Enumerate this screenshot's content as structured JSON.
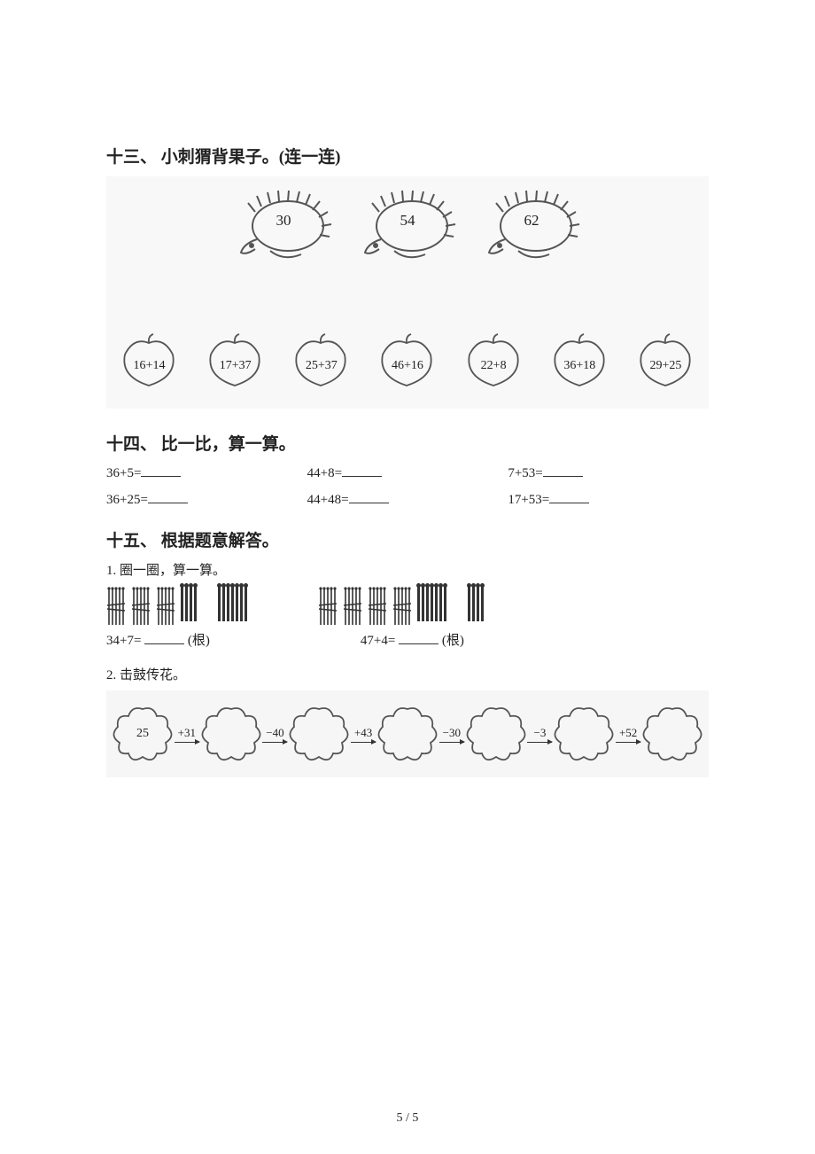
{
  "section13": {
    "title": "十三、 小刺猬背果子。(连一连)",
    "hedgehogs": [
      "30",
      "54",
      "62"
    ],
    "apples": [
      "16+14",
      "17+37",
      "25+37",
      "46+16",
      "22+8",
      "36+18",
      "29+25"
    ],
    "stroke": "#555555",
    "bg": "#f8f8f8"
  },
  "section14": {
    "title": "十四、 比一比，算一算。",
    "rows": [
      [
        "36+5=",
        "44+8=",
        "7+53="
      ],
      [
        "36+25=",
        "44+48=",
        "17+53="
      ]
    ]
  },
  "section15": {
    "title": "十五、 根据题意解答。",
    "q1": {
      "label": "1. 圈一圈，算一算。",
      "left": {
        "bundles": 3,
        "loose_groups": [
          4,
          7
        ],
        "expr": "34+7=",
        "unit": "(根)"
      },
      "right": {
        "bundles": 4,
        "loose_groups": [
          7,
          4
        ],
        "expr": "47+4=",
        "unit": "(根)"
      }
    },
    "q2": {
      "label": "2. 击鼓传花。",
      "start": "25",
      "ops": [
        "+31",
        "−40",
        "+43",
        "−30",
        "−3",
        "+52"
      ],
      "stroke": "#555555",
      "bg": "#f6f6f6"
    }
  },
  "pageNumber": "5 / 5"
}
